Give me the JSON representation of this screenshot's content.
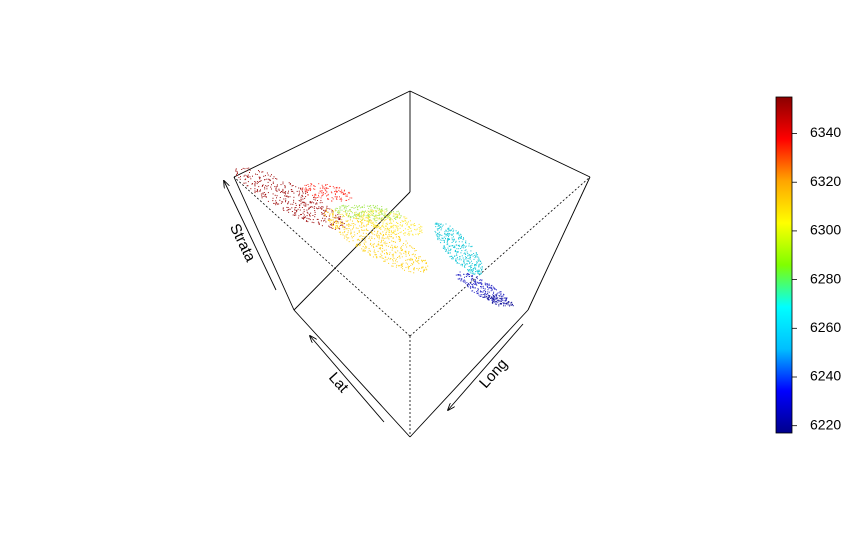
{
  "chart_data": {
    "type": "scatter",
    "subtype": "3d-scatter",
    "title": "",
    "axes": {
      "x": "Long",
      "y": "Lat",
      "z": "Strata"
    },
    "color_variable_range": [
      6217,
      6355
    ],
    "colorbar": {
      "ticks": [
        6220,
        6240,
        6260,
        6280,
        6300,
        6320,
        6340
      ],
      "ticks_text": [
        "6220",
        "6240",
        "6260",
        "6280",
        "6300",
        "6320",
        "6340"
      ],
      "palette": [
        "#00008B",
        "#0000FF",
        "#00BFFF",
        "#00FFFF",
        "#7FFF00",
        "#FFFF00",
        "#FFA500",
        "#FF0000",
        "#8B0000"
      ],
      "placement": "right"
    },
    "clusters": [
      {
        "value": 6345,
        "color": "#a01010"
      },
      {
        "value": 6320,
        "color": "#ff3b2f"
      },
      {
        "value": 6305,
        "color": "#ffd21a"
      },
      {
        "value": 6295,
        "color": "#ffe83a"
      },
      {
        "value": 6285,
        "color": "#a8e85a"
      },
      {
        "value": 6262,
        "color": "#18c8d8"
      },
      {
        "value": 6235,
        "color": "#3030c8"
      },
      {
        "value": 6222,
        "color": "#1a1a9a"
      }
    ],
    "grid": false,
    "box": true
  }
}
